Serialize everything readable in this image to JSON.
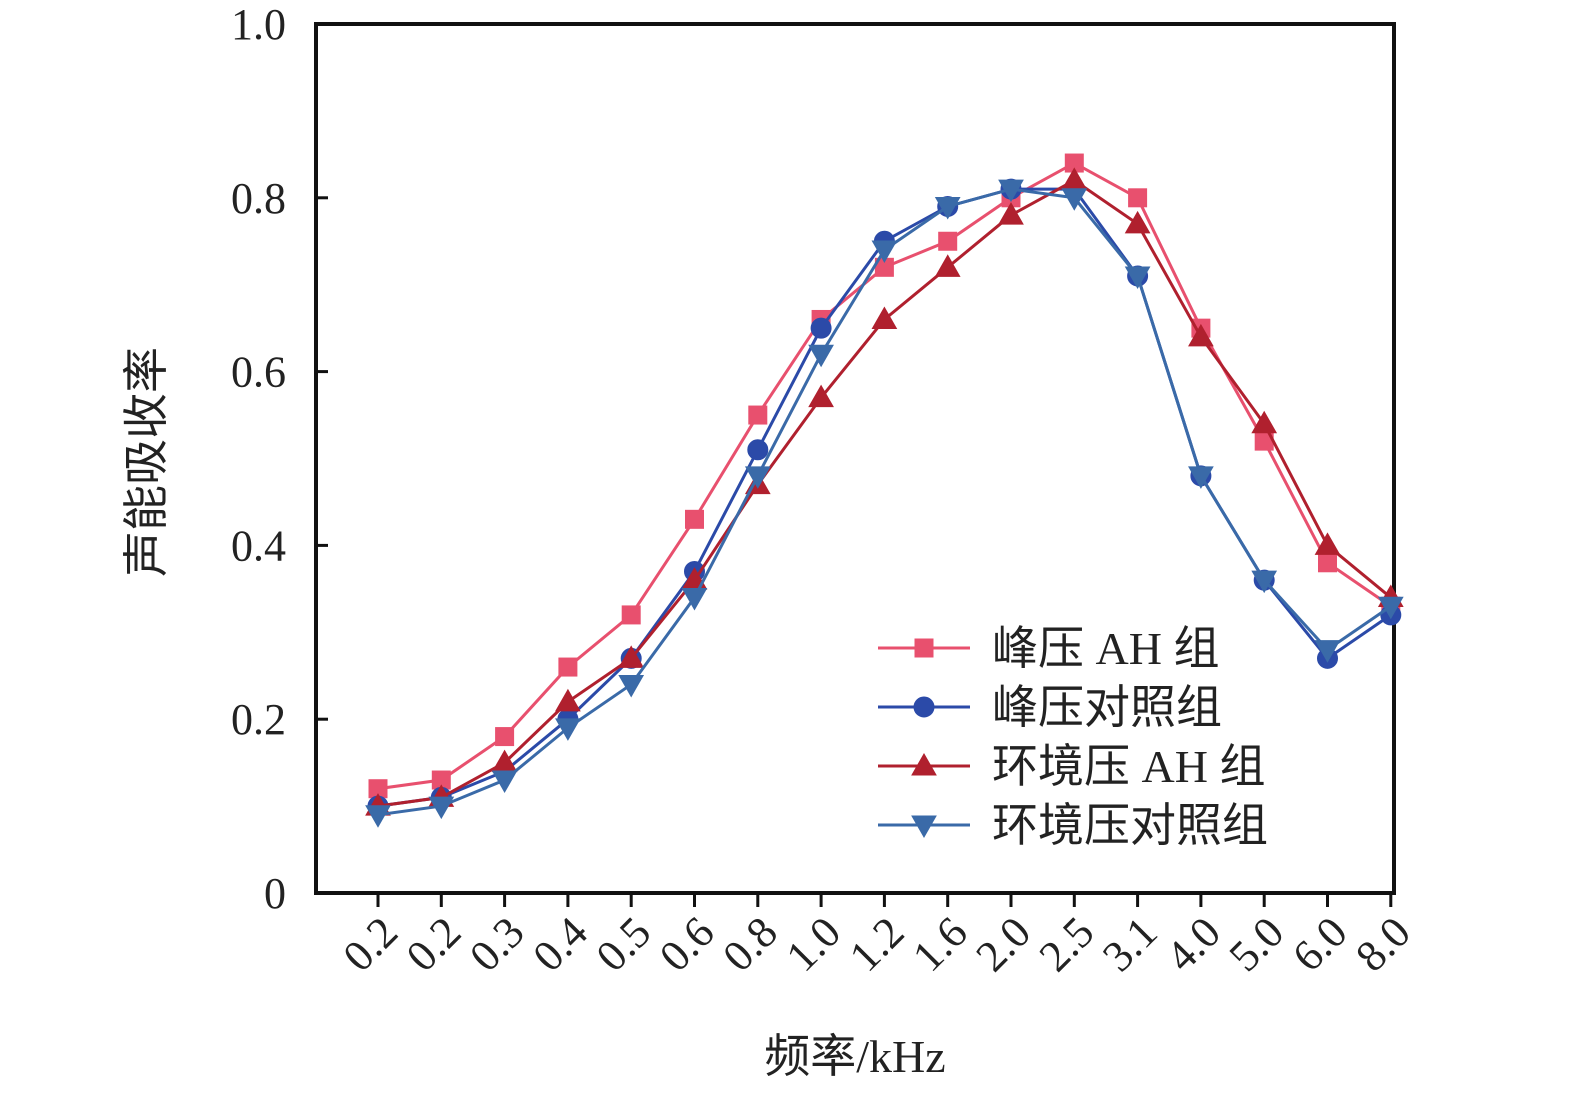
{
  "chart_data": {
    "type": "line",
    "title": "",
    "xlabel": "频率/kHz",
    "ylabel": "声能吸收率",
    "categories": [
      "0.2",
      "0.2",
      "0.3",
      "0.4",
      "0.5",
      "0.6",
      "0.8",
      "1.0",
      "1.2",
      "1.6",
      "2.0",
      "2.5",
      "3.1",
      "4.0",
      "5.0",
      "6.0",
      "8.0"
    ],
    "ylim": [
      0,
      1.0
    ],
    "yticks": [
      "0",
      "0.2",
      "0.4",
      "0.6",
      "0.8",
      "1.0"
    ],
    "yticks_values": [
      0,
      0.2,
      0.4,
      0.6,
      0.8,
      1.0
    ],
    "grid": false,
    "legend_position": "bottom-right",
    "series": [
      {
        "name": "峰压 AH 组",
        "color": "#e8506e",
        "marker": "square",
        "values": [
          0.12,
          0.13,
          0.18,
          0.26,
          0.32,
          0.43,
          0.55,
          0.66,
          0.72,
          0.75,
          0.8,
          0.84,
          0.8,
          0.65,
          0.52,
          0.38,
          0.33
        ]
      },
      {
        "name": "峰压对照组",
        "color": "#2b4aa8",
        "marker": "circle",
        "values": [
          0.1,
          0.11,
          0.14,
          0.2,
          0.27,
          0.37,
          0.51,
          0.65,
          0.75,
          0.79,
          0.81,
          0.81,
          0.71,
          0.48,
          0.36,
          0.27,
          0.32
        ]
      },
      {
        "name": "环境压 AH 组",
        "color": "#b0202e",
        "marker": "triangle-up",
        "values": [
          0.1,
          0.11,
          0.15,
          0.22,
          0.27,
          0.36,
          0.47,
          0.57,
          0.66,
          0.72,
          0.78,
          0.82,
          0.77,
          0.64,
          0.54,
          0.4,
          0.34
        ]
      },
      {
        "name": "环境压对照组",
        "color": "#3a6aa8",
        "marker": "triangle-down",
        "values": [
          0.09,
          0.1,
          0.13,
          0.19,
          0.24,
          0.34,
          0.48,
          0.62,
          0.74,
          0.79,
          0.81,
          0.8,
          0.71,
          0.48,
          0.36,
          0.28,
          0.33
        ]
      }
    ]
  }
}
